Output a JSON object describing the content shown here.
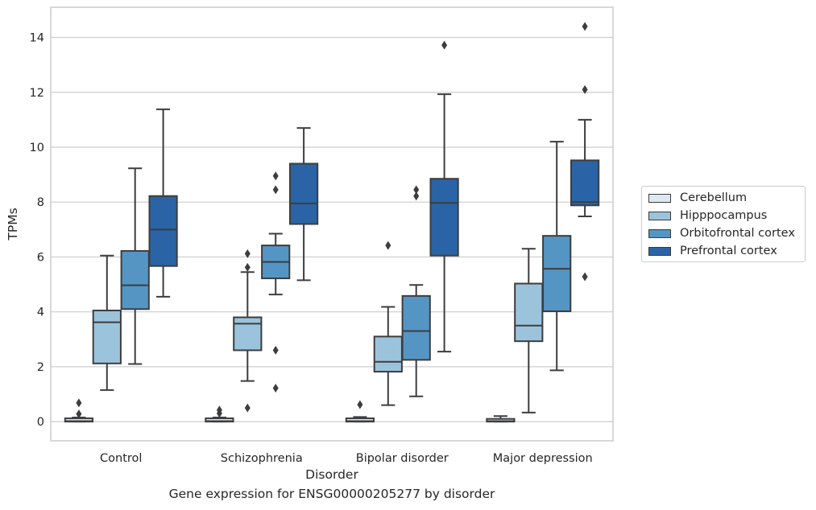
{
  "chart_data": {
    "type": "box",
    "caption": "Gene expression for ENSG00000205277 by disorder",
    "xlabel": "Disorder",
    "ylabel": "TPMs",
    "ylim": [
      -0.7,
      15.1
    ],
    "yticks": [
      0,
      2,
      4,
      6,
      8,
      10,
      12,
      14
    ],
    "grid": true,
    "legend_position": "right",
    "categories": [
      "Control",
      "Schizophrenia",
      "Bipolar disorder",
      "Major depression"
    ],
    "series": [
      {
        "name": "Cerebellum",
        "color": "#dce9f5",
        "boxes": [
          {
            "whislo": 0.0,
            "q1": 0.0,
            "med": 0.02,
            "q3": 0.12,
            "whishi": 0.15,
            "fliers": [
              0.28,
              0.68
            ]
          },
          {
            "whislo": 0.0,
            "q1": 0.0,
            "med": 0.02,
            "q3": 0.12,
            "whishi": 0.15,
            "fliers": [
              0.3,
              0.42
            ]
          },
          {
            "whislo": 0.0,
            "q1": 0.0,
            "med": 0.02,
            "q3": 0.12,
            "whishi": 0.17,
            "fliers": [
              0.62
            ]
          },
          {
            "whislo": 0.0,
            "q1": 0.0,
            "med": 0.02,
            "q3": 0.1,
            "whishi": 0.2,
            "fliers": []
          }
        ]
      },
      {
        "name": "Hipppocampus",
        "color": "#9cc3dc",
        "boxes": [
          {
            "whislo": 1.15,
            "q1": 2.12,
            "med": 3.62,
            "q3": 4.05,
            "whishi": 6.05,
            "fliers": []
          },
          {
            "whislo": 1.48,
            "q1": 2.6,
            "med": 3.57,
            "q3": 3.8,
            "whishi": 5.45,
            "fliers": [
              0.5,
              5.62,
              6.12
            ]
          },
          {
            "whislo": 0.6,
            "q1": 1.82,
            "med": 2.18,
            "q3": 3.1,
            "whishi": 4.18,
            "fliers": [
              6.42
            ]
          },
          {
            "whislo": 0.33,
            "q1": 2.93,
            "med": 3.5,
            "q3": 5.03,
            "whishi": 6.3,
            "fliers": []
          }
        ]
      },
      {
        "name": "Orbitofrontal cortex",
        "color": "#5595c4",
        "boxes": [
          {
            "whislo": 2.1,
            "q1": 4.1,
            "med": 4.97,
            "q3": 6.22,
            "whishi": 9.23,
            "fliers": []
          },
          {
            "whislo": 4.63,
            "q1": 5.22,
            "med": 5.82,
            "q3": 6.42,
            "whishi": 6.85,
            "fliers": [
              1.22,
              2.6,
              8.45,
              8.95
            ]
          },
          {
            "whislo": 0.92,
            "q1": 2.25,
            "med": 3.3,
            "q3": 4.58,
            "whishi": 4.98,
            "fliers": [
              8.22,
              8.45
            ]
          },
          {
            "whislo": 1.87,
            "q1": 4.02,
            "med": 5.57,
            "q3": 6.77,
            "whishi": 10.2,
            "fliers": []
          }
        ]
      },
      {
        "name": "Prefrontal cortex",
        "color": "#2a64a6",
        "boxes": [
          {
            "whislo": 4.55,
            "q1": 5.67,
            "med": 7.0,
            "q3": 8.22,
            "whishi": 11.38,
            "fliers": []
          },
          {
            "whislo": 5.15,
            "q1": 7.2,
            "med": 7.95,
            "q3": 9.4,
            "whishi": 10.7,
            "fliers": []
          },
          {
            "whislo": 2.55,
            "q1": 6.05,
            "med": 7.97,
            "q3": 8.85,
            "whishi": 11.93,
            "fliers": [
              13.72
            ]
          },
          {
            "whislo": 7.48,
            "q1": 7.88,
            "med": 8.0,
            "q3": 9.52,
            "whishi": 11.0,
            "fliers": [
              5.28,
              12.1,
              14.4
            ]
          }
        ]
      }
    ]
  }
}
